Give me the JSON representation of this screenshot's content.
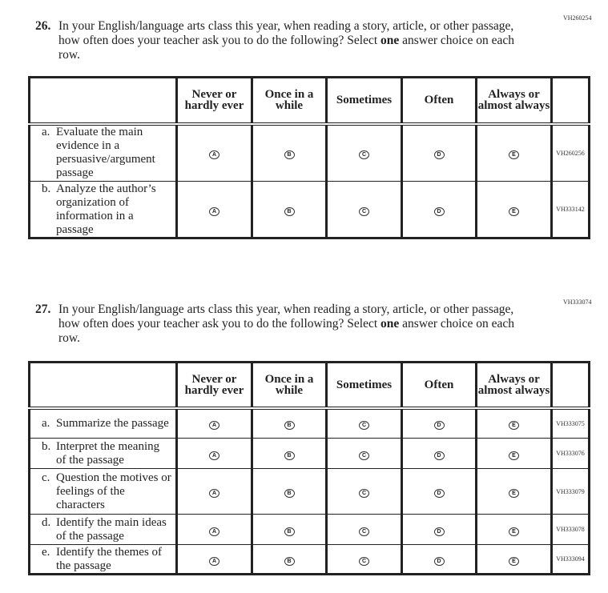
{
  "questions": [
    {
      "id": "VH260254",
      "number": "26.",
      "text_before": "In your English/language arts class this year, when reading a story, article, or other passage, how often does your teacher ask you to do the following? Select ",
      "bold": "one",
      "text_after": " answer choice on each row.",
      "columns": [
        "Never or hardly ever",
        "Once in a while",
        "Sometimes",
        "Often",
        "Always or almost always"
      ],
      "options": [
        "A",
        "B",
        "C",
        "D",
        "E"
      ],
      "rows": [
        {
          "letter": "a.",
          "text": "Evaluate the main evidence in a persuasive/argument passage",
          "code": "VH260256"
        },
        {
          "letter": "b.",
          "text": "Analyze the author’s organization of information in a passage",
          "code": "VH333142"
        }
      ]
    },
    {
      "id": "VH333074",
      "number": "27.",
      "text_before": "In your English/language arts class this year, when reading a story, article, or other passage, how often does your teacher ask you to do the following? Select ",
      "bold": "one",
      "text_after": " answer choice on each row.",
      "columns": [
        "Never or hardly ever",
        "Once in a while",
        "Sometimes",
        "Often",
        "Always or almost always"
      ],
      "options": [
        "A",
        "B",
        "C",
        "D",
        "E"
      ],
      "rows": [
        {
          "letter": "a.",
          "text": "Summarize the passage",
          "code": "VH333075"
        },
        {
          "letter": "b.",
          "text": "Interpret the meaning of the passage",
          "code": "VH333076"
        },
        {
          "letter": "c.",
          "text": "Question the motives or feelings of the characters",
          "code": "VH333079"
        },
        {
          "letter": "d.",
          "text": "Identify the main ideas of the passage",
          "code": "VH333078"
        },
        {
          "letter": "e.",
          "text": "Identify the themes of the passage",
          "code": "VH333094"
        }
      ]
    }
  ]
}
